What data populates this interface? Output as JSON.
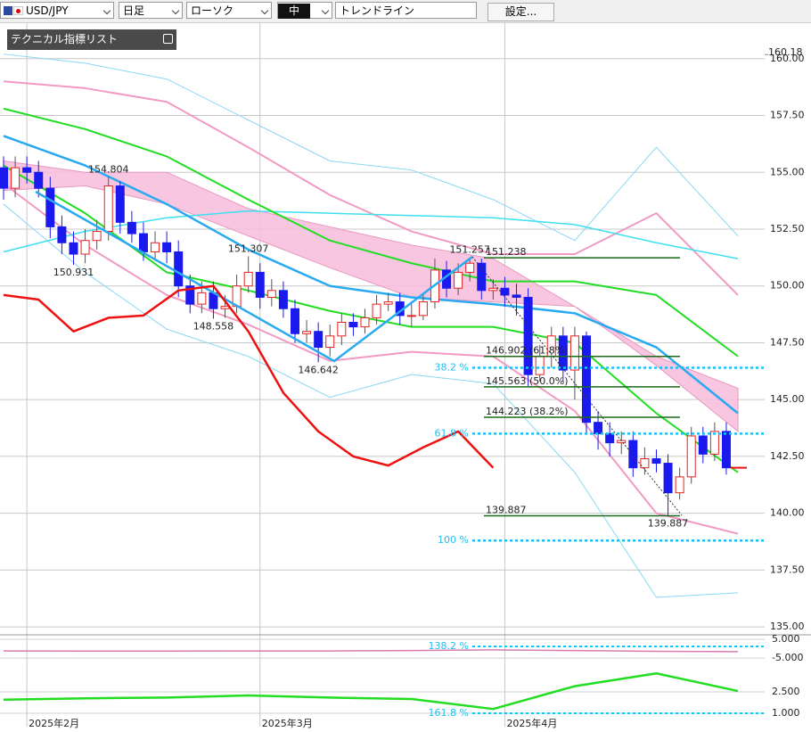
{
  "toolbar": {
    "symbol": "USD/JPY",
    "period": "日足",
    "chart_type": "ローソク",
    "size": "中",
    "tool": "トレンドライン",
    "settings": "設定..."
  },
  "panel_title": "テクニカル指標リスト",
  "chart_data": {
    "type": "candlestick",
    "categories": [
      null,
      null,
      "2025年2月",
      null,
      null,
      null,
      null,
      null,
      null,
      null,
      null,
      null,
      null,
      null,
      null,
      null,
      null,
      null,
      null,
      null,
      null,
      null,
      "2025年3月",
      null,
      null,
      null,
      null,
      null,
      null,
      null,
      null,
      null,
      null,
      null,
      null,
      null,
      null,
      null,
      null,
      null,
      null,
      null,
      null,
      "2025年4月",
      null,
      null,
      null,
      null,
      null,
      null,
      null,
      null,
      null,
      null,
      null,
      null,
      null,
      null,
      null,
      null,
      null,
      null,
      null
    ],
    "open": [
      155.2,
      154.3,
      155.2,
      155.0,
      154.3,
      152.6,
      151.9,
      151.4,
      152.0,
      152.4,
      154.4,
      152.8,
      152.3,
      151.5,
      151.9,
      151.5,
      150.0,
      149.2,
      149.7,
      149.0,
      149.1,
      150.0,
      150.6,
      149.5,
      149.8,
      149.0,
      147.9,
      148.0,
      147.3,
      147.8,
      148.4,
      148.2,
      148.6,
      149.2,
      149.3,
      148.7,
      148.7,
      149.3,
      150.7,
      149.9,
      150.6,
      151.0,
      149.8,
      149.9,
      149.6,
      149.5,
      146.1,
      146.9,
      147.8,
      146.3,
      147.8,
      144.0,
      143.5,
      143.1,
      143.2,
      142.0,
      142.4,
      142.2,
      140.9,
      141.6,
      143.4,
      142.6,
      143.6
    ],
    "high": [
      155.7,
      155.7,
      155.7,
      155.5,
      154.8,
      153.1,
      152.4,
      152.5,
      152.9,
      154.804,
      154.6,
      153.3,
      152.8,
      152.4,
      152.4,
      152.0,
      150.5,
      150.2,
      150.2,
      149.6,
      150.5,
      151.307,
      151.0,
      150.3,
      150.2,
      149.4,
      148.5,
      148.4,
      148.3,
      148.8,
      148.8,
      149.0,
      149.6,
      149.7,
      149.7,
      149.2,
      149.7,
      151.2,
      151.1,
      151.0,
      151.257,
      151.2,
      150.3,
      150.4,
      150.1,
      149.9,
      147.4,
      148.2,
      148.2,
      148.2,
      148.0,
      144.5,
      144.0,
      143.6,
      143.6,
      142.9,
      142.8,
      142.6,
      142.0,
      143.8,
      143.8,
      144.0,
      144.0
    ],
    "low": [
      153.8,
      153.9,
      154.5,
      153.9,
      152.1,
      151.4,
      150.931,
      151.0,
      151.6,
      152.0,
      152.3,
      151.9,
      151.1,
      151.1,
      151.0,
      149.5,
      148.8,
      148.8,
      148.558,
      148.6,
      148.8,
      149.7,
      149.0,
      149.1,
      148.6,
      147.5,
      147.5,
      146.642,
      146.9,
      147.4,
      147.8,
      147.9,
      148.3,
      148.9,
      148.3,
      148.2,
      148.5,
      149.0,
      149.5,
      149.6,
      150.2,
      149.4,
      149.4,
      149.1,
      148.7,
      145.6,
      145.8,
      146.4,
      145.8,
      145.0,
      143.5,
      142.8,
      142.5,
      142.6,
      141.6,
      141.7,
      141.8,
      139.887,
      140.6,
      141.3,
      142.2,
      142.3,
      141.7
    ],
    "close": [
      154.3,
      155.2,
      155.0,
      154.3,
      152.6,
      151.9,
      151.4,
      152.0,
      152.4,
      154.4,
      152.8,
      152.3,
      151.5,
      151.9,
      151.5,
      150.0,
      149.2,
      149.7,
      149.0,
      149.1,
      150.0,
      150.6,
      149.5,
      149.8,
      149.0,
      147.9,
      148.0,
      147.3,
      147.8,
      148.4,
      148.2,
      148.6,
      149.2,
      149.3,
      148.7,
      148.7,
      149.3,
      150.7,
      149.9,
      150.6,
      151.0,
      149.8,
      149.9,
      149.6,
      149.5,
      146.1,
      146.9,
      147.8,
      146.3,
      147.8,
      144.0,
      143.5,
      143.1,
      143.2,
      142.0,
      142.4,
      142.2,
      140.9,
      141.6,
      143.4,
      142.6,
      143.6,
      142.0
    ],
    "up_color": "#e82020",
    "down_color": "#1a1aee",
    "ylim": [
      134.73,
      161.6
    ],
    "yticks": [
      {
        "value": 160,
        "label": "160.00"
      },
      {
        "value": 157.5,
        "label": "157.50"
      },
      {
        "value": 155,
        "label": "155.00"
      },
      {
        "value": 152.5,
        "label": "152.50"
      },
      {
        "value": 150,
        "label": "150.00"
      },
      {
        "value": 147.5,
        "label": "147.50"
      },
      {
        "value": 145,
        "label": "145.00"
      },
      {
        "value": 142.5,
        "label": "142.50"
      },
      {
        "value": 140,
        "label": "140.00"
      },
      {
        "value": 137.5,
        "label": "137.50"
      },
      {
        "value": 135,
        "label": "135.00"
      }
    ],
    "marker_labels": [
      160.18
    ],
    "grid": true,
    "cloud": {
      "color": "#f7bcdc",
      "x": [
        0,
        7,
        14,
        21,
        28,
        35,
        42,
        49,
        56,
        63
      ],
      "upper": [
        155.5,
        155.0,
        155.0,
        153.4,
        152.6,
        151.8,
        151.2,
        149.1,
        146.9,
        145.5
      ],
      "lower": [
        154.2,
        154.4,
        153.6,
        152.2,
        150.8,
        149.5,
        149.3,
        149.1,
        146.5,
        143.6
      ]
    },
    "lines": [
      {
        "color": "#88d8f4",
        "width": 1,
        "x": [
          0,
          7,
          14,
          21,
          28,
          35,
          42,
          49,
          56,
          63
        ],
        "values": [
          160.2,
          159.8,
          159.1,
          157.3,
          155.5,
          155.1,
          153.8,
          152.0,
          156.1,
          152.2
        ]
      },
      {
        "color": "#88d8f4",
        "width": 1,
        "x": [
          0,
          7,
          14,
          21,
          28,
          35,
          42,
          49,
          56,
          63
        ],
        "values": [
          153.6,
          150.6,
          148.1,
          146.9,
          145.1,
          146.1,
          145.7,
          141.8,
          136.3,
          136.5
        ]
      },
      {
        "color": "#f29ac4",
        "width": 2,
        "x": [
          0,
          7,
          14,
          21,
          28,
          35,
          42,
          49,
          56,
          63
        ],
        "values": [
          159.0,
          158.7,
          158.1,
          156.1,
          154.0,
          152.4,
          151.4,
          151.4,
          153.2,
          149.6
        ]
      },
      {
        "color": "#f29ac4",
        "width": 2,
        "x": [
          0,
          7,
          14,
          21,
          28,
          35,
          42,
          49,
          56,
          63
        ],
        "values": [
          154.5,
          151.8,
          149.6,
          148.3,
          146.7,
          147.1,
          146.9,
          144.5,
          140.0,
          139.1
        ]
      },
      {
        "color": "#3ee0f0",
        "width": 1.5,
        "x": [
          0,
          7,
          14,
          21,
          28,
          35,
          42,
          49,
          56,
          63
        ],
        "values": [
          151.5,
          152.4,
          153.0,
          153.3,
          153.2,
          153.1,
          153.0,
          152.7,
          151.9,
          151.2
        ]
      },
      {
        "color": "#22dd22",
        "width": 2,
        "x": [
          0,
          7,
          14,
          21,
          28,
          35,
          42,
          49,
          56,
          63
        ],
        "values": [
          157.8,
          156.9,
          155.7,
          153.8,
          152.0,
          151.0,
          150.2,
          150.2,
          149.6,
          146.9
        ]
      },
      {
        "color": "#22dd22",
        "width": 2,
        "x": [
          0,
          7,
          14,
          21,
          28,
          35,
          42,
          49,
          56,
          63
        ],
        "values": [
          155.3,
          153.2,
          150.6,
          149.8,
          148.9,
          148.2,
          148.2,
          147.5,
          144.4,
          141.8
        ]
      },
      {
        "color": "#29aaf0",
        "width": 2.5,
        "x": [
          0,
          7,
          14,
          21,
          28,
          35,
          42,
          49,
          56,
          63
        ],
        "values": [
          156.6,
          155.3,
          153.6,
          151.6,
          150.0,
          149.5,
          149.2,
          148.8,
          147.3,
          144.4
        ]
      },
      {
        "color": "#ee1111",
        "width": 2.5,
        "x": [
          0,
          3,
          6,
          9,
          12,
          15,
          18,
          21,
          24,
          27,
          30,
          33,
          36,
          39,
          42
        ],
        "values": [
          149.6,
          149.4,
          148.0,
          148.6,
          148.7,
          149.8,
          150.0,
          148.0,
          145.3,
          143.6,
          142.5,
          142.1,
          142.9,
          143.6,
          142.0
        ]
      }
    ],
    "fib": [
      151.238,
      {
        "value": 146.902,
        "label": "146.902 (61.8%)"
      },
      {
        "value": 145.563,
        "label": "145.563 (50.0%)"
      },
      {
        "value": 144.223,
        "label": "144.223 (38.2%)"
      },
      139.887
    ],
    "fib_color": "#1a6a1a",
    "pct_levels": [
      {
        "percent": 38.2,
        "value": 146.4,
        "label": "38.2 %"
      },
      {
        "percent": 61.8,
        "value": 143.5,
        "label": "61.8 %"
      },
      {
        "percent": 100,
        "value": 138.8,
        "label": "100 %"
      }
    ],
    "pct_color": "#1ec0f0",
    "price_labels": [
      {
        "index": 9,
        "value": 154.804
      },
      {
        "index": 6,
        "value": 150.931
      },
      {
        "index": 21,
        "value": 151.307
      },
      {
        "index": 18,
        "value": 148.558
      },
      {
        "index": 27,
        "value": 146.642
      },
      {
        "index": 40,
        "value": 151.257
      },
      {
        "index": 57,
        "value": 139.887
      }
    ],
    "panels": [
      {
        "ylim": [
          -8.3,
          7.4
        ],
        "yticks": [
          {
            "value": 5,
            "label": "5.000"
          },
          {
            "value": -5,
            "label": "-5.000"
          }
        ],
        "lines": [
          {
            "color": "#d77bb0",
            "width": 1.5,
            "x": [
              0,
              7,
              14,
              21,
              28,
              35,
              42,
              49,
              56,
              63
            ],
            "values": [
              -1.2,
              -1.3,
              -1.3,
              -1.2,
              -1.2,
              -1.0,
              -0.6,
              -1.0,
              -1.4,
              -1.6
            ]
          }
        ],
        "levels": [
          {
            "percent": 138.2,
            "value": 1.2,
            "label": "138.2 %"
          }
        ]
      },
      {
        "ylim": [
          0.06,
          4.44
        ],
        "yticks": [
          {
            "value": 2.5,
            "label": "2.500"
          },
          {
            "value": 1,
            "label": "1.000"
          }
        ],
        "lines": [
          {
            "color": "#22dd22",
            "width": 2.5,
            "x": [
              0,
              7,
              14,
              21,
              28,
              35,
              42,
              49,
              56,
              63
            ],
            "values": [
              1.95,
              2.05,
              2.1,
              2.25,
              2.1,
              2.0,
              1.3,
              2.9,
              3.8,
              2.56
            ]
          }
        ],
        "levels": [
          {
            "percent": 161.8,
            "value": 1.0,
            "label": "161.8 %"
          }
        ]
      }
    ]
  }
}
